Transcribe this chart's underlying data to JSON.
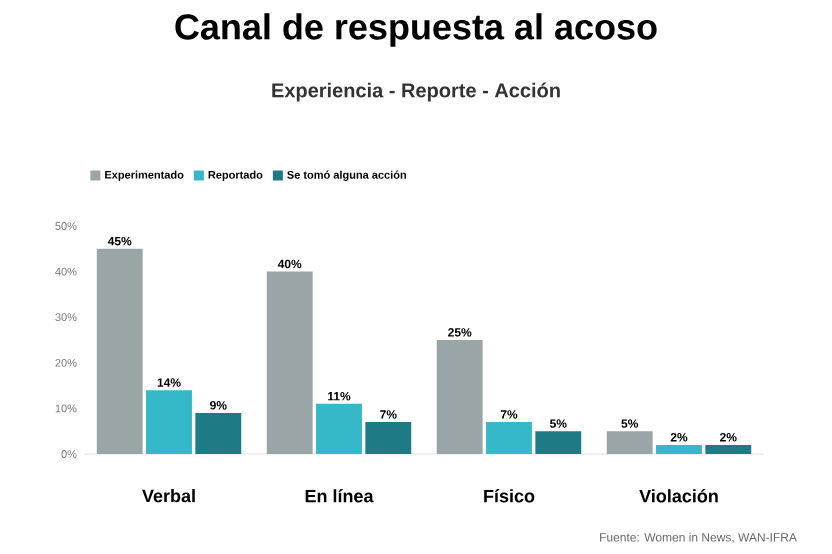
{
  "chart_data": {
    "type": "bar",
    "title": "Canal de respuesta al acoso",
    "subtitle": "Experiencia - Reporte - Acción",
    "categories": [
      "Verbal",
      "En línea",
      "Físico",
      "Violación"
    ],
    "series": [
      {
        "name": "Experimentado",
        "color": "#9aa5a8",
        "values": [
          45,
          40,
          25,
          5
        ],
        "value_labels": [
          "45%",
          "40%",
          "25%",
          "5%"
        ]
      },
      {
        "name": "Reportado",
        "color": "#35b8c8",
        "values": [
          14,
          11,
          7,
          2
        ],
        "value_labels": [
          "14%",
          "11%",
          "7%",
          "2%"
        ]
      },
      {
        "name": "Se tomó alguna acción",
        "color": "#1e7b86",
        "values": [
          9,
          7,
          5,
          2
        ],
        "value_labels": [
          "9%",
          "7%",
          "5%",
          "2%"
        ]
      }
    ],
    "ylim": [
      0,
      50
    ],
    "yticks": [
      {
        "value": 0,
        "label": "0%"
      },
      {
        "value": 10,
        "label": "10%"
      },
      {
        "value": 20,
        "label": "20%"
      },
      {
        "value": 30,
        "label": "30%"
      },
      {
        "value": 40,
        "label": "40%"
      },
      {
        "value": 50,
        "label": "50%"
      }
    ],
    "legend": "top left",
    "annotations": [
      "Fuente: Women in News, WAN-IFRA"
    ]
  }
}
